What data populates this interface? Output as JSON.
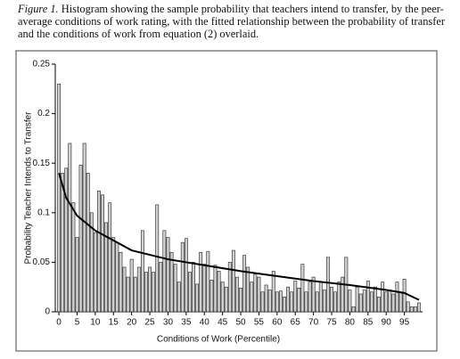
{
  "chart_data": {
    "type": "bar",
    "caption_label": "Figure 1.",
    "caption": "Histogram showing the sample probability that teachers intend to transfer, by the peer-average conditions of work rating, with the fitted relationship between the probability of transfer and the conditions of work from equation (2) overlaid.",
    "xlabel": "Conditions of Work (Percentile)",
    "ylabel": "Probability Teacher Intends to Transfer",
    "x": [
      0,
      1,
      2,
      3,
      4,
      5,
      6,
      7,
      8,
      9,
      10,
      11,
      12,
      13,
      14,
      15,
      16,
      17,
      18,
      19,
      20,
      21,
      22,
      23,
      24,
      25,
      26,
      27,
      28,
      29,
      30,
      31,
      32,
      33,
      34,
      35,
      36,
      37,
      38,
      39,
      40,
      41,
      42,
      43,
      44,
      45,
      46,
      47,
      48,
      49,
      50,
      51,
      52,
      53,
      54,
      55,
      56,
      57,
      58,
      59,
      60,
      61,
      62,
      63,
      64,
      65,
      66,
      67,
      68,
      69,
      70,
      71,
      72,
      73,
      74,
      75,
      76,
      77,
      78,
      79,
      80,
      81,
      82,
      83,
      84,
      85,
      86,
      87,
      88,
      89,
      90,
      91,
      92,
      93,
      94,
      95,
      96,
      97,
      98,
      99
    ],
    "values": [
      0.23,
      0.14,
      0.145,
      0.17,
      0.11,
      0.075,
      0.148,
      0.17,
      0.14,
      0.1,
      0.08,
      0.122,
      0.118,
      0.09,
      0.11,
      0.075,
      0.07,
      0.06,
      0.045,
      0.035,
      0.053,
      0.035,
      0.045,
      0.082,
      0.04,
      0.045,
      0.04,
      0.108,
      0.05,
      0.082,
      0.075,
      0.06,
      0.048,
      0.03,
      0.07,
      0.074,
      0.04,
      0.05,
      0.028,
      0.06,
      0.048,
      0.061,
      0.032,
      0.047,
      0.041,
      0.03,
      0.025,
      0.05,
      0.062,
      0.035,
      0.024,
      0.057,
      0.045,
      0.03,
      0.038,
      0.035,
      0.02,
      0.027,
      0.022,
      0.041,
      0.02,
      0.021,
      0.015,
      0.025,
      0.02,
      0.031,
      0.024,
      0.048,
      0.02,
      0.03,
      0.035,
      0.02,
      0.03,
      0.022,
      0.055,
      0.025,
      0.02,
      0.03,
      0.035,
      0.055,
      0.022,
      0.005,
      0.025,
      0.018,
      0.022,
      0.031,
      0.02,
      0.025,
      0.015,
      0.03,
      0.02,
      0.022,
      0.018,
      0.03,
      0.02,
      0.033,
      0.01,
      0.005,
      0.005,
      0.009
    ],
    "color": "#cfcfcf",
    "fitted": {
      "type": "line",
      "color": "#000000",
      "x": [
        0,
        2,
        5,
        10,
        15,
        20,
        30,
        40,
        50,
        60,
        70,
        80,
        90,
        95,
        99
      ],
      "values": [
        0.14,
        0.115,
        0.097,
        0.082,
        0.072,
        0.062,
        0.053,
        0.047,
        0.041,
        0.036,
        0.031,
        0.027,
        0.022,
        0.019,
        0.012
      ]
    },
    "xlim": [
      -1,
      100
    ],
    "xticks": [
      0,
      5,
      10,
      15,
      20,
      25,
      30,
      35,
      40,
      45,
      50,
      55,
      60,
      65,
      70,
      75,
      80,
      85,
      90,
      95
    ],
    "ylim": [
      0,
      0.25
    ],
    "yticks": [
      0,
      0.05,
      0.1,
      0.15,
      0.2,
      0.25
    ],
    "grid": false
  }
}
